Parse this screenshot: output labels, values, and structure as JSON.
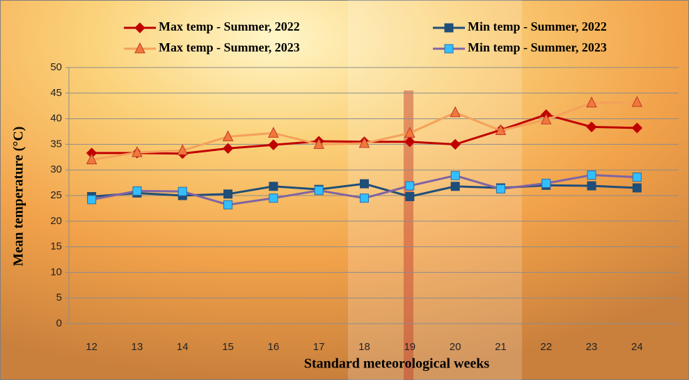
{
  "chart_data": {
    "type": "line",
    "x_label": "Standard meteorological weeks",
    "y_label": "Mean temperature (°C)",
    "categories": [
      "12",
      "13",
      "14",
      "15",
      "16",
      "17",
      "18",
      "19",
      "20",
      "21",
      "22",
      "23",
      "24"
    ],
    "series": [
      {
        "name": "Max temp - Summer, 2022",
        "color": "#c00000",
        "marker": "diamond",
        "marker_color": "#c00000",
        "values": [
          33.3,
          33.3,
          33.2,
          34.2,
          34.9,
          35.6,
          35.5,
          35.5,
          35.0,
          37.8,
          40.8,
          38.4,
          38.2
        ]
      },
      {
        "name": "Min temp - Summer, 2022",
        "color": "#1f4e79",
        "marker": "square",
        "marker_color": "#1f4e79",
        "values": [
          24.8,
          25.5,
          25.0,
          25.3,
          26.8,
          26.2,
          27.3,
          24.8,
          26.8,
          26.5,
          27.0,
          26.9,
          26.5
        ]
      },
      {
        "name": "Max temp - Summer, 2023",
        "color": "#f4a15a",
        "marker": "triangle",
        "marker_color": "#f0793a",
        "values": [
          32.0,
          33.4,
          33.8,
          36.5,
          37.2,
          35.0,
          35.2,
          37.2,
          41.2,
          37.7,
          39.8,
          43.1,
          43.2
        ]
      },
      {
        "name": "Min temp - Summer, 2023",
        "color": "#8064a2",
        "marker": "square",
        "marker_color": "#33bfff",
        "values": [
          24.2,
          25.9,
          25.8,
          23.2,
          24.5,
          26.0,
          24.5,
          26.9,
          28.9,
          26.3,
          27.4,
          29.0,
          28.6
        ]
      }
    ],
    "ylim": [
      0,
      50
    ],
    "yticks": [
      0,
      5,
      10,
      15,
      20,
      25,
      30,
      35,
      40,
      45,
      50
    ],
    "grid": true
  }
}
